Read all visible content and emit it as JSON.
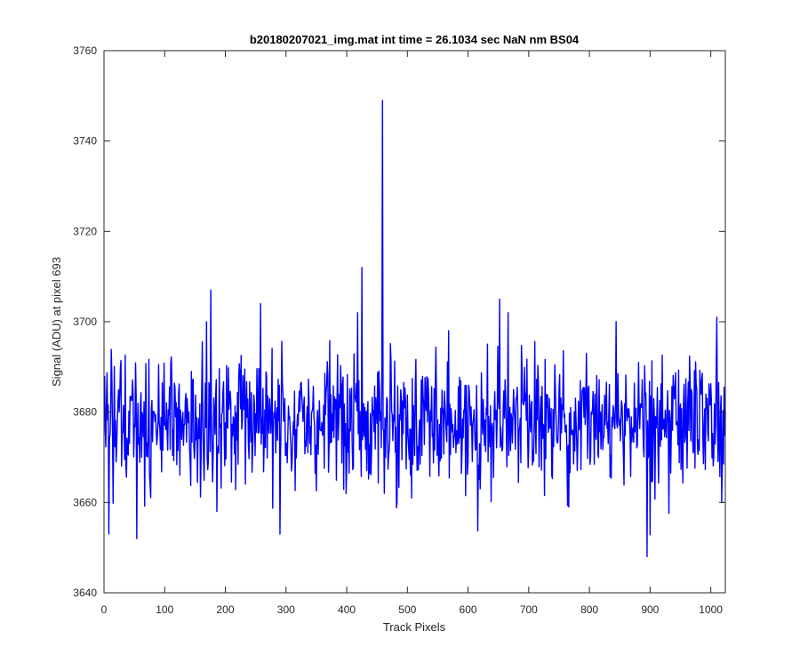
{
  "chart_data": {
    "type": "line",
    "title": "b20180207021_img.mat int time = 26.1034 sec  NaN nm BS04",
    "xlabel": "Track Pixels",
    "ylabel": "Signal (ADU) at pixel 693",
    "xlim": [
      0,
      1024
    ],
    "ylim": [
      3640,
      3760
    ],
    "xticks": [
      0,
      100,
      200,
      300,
      400,
      500,
      600,
      700,
      800,
      900,
      1000
    ],
    "yticks": [
      3640,
      3660,
      3680,
      3700,
      3720,
      3740,
      3760
    ],
    "grid": false,
    "legend": "none",
    "series": [
      {
        "color": "#0000ff",
        "noise_seed": 20180207,
        "baseline": 3678,
        "noise_amplitude": 7,
        "length": 1024,
        "key_points": [
          {
            "x": 1,
            "y": 3688
          },
          {
            "x": 8,
            "y": 3653
          },
          {
            "x": 54,
            "y": 3652
          },
          {
            "x": 176,
            "y": 3707
          },
          {
            "x": 186,
            "y": 3658
          },
          {
            "x": 258,
            "y": 3704
          },
          {
            "x": 290,
            "y": 3653
          },
          {
            "x": 418,
            "y": 3702
          },
          {
            "x": 425,
            "y": 3712
          },
          {
            "x": 459,
            "y": 3749
          },
          {
            "x": 462,
            "y": 3662
          },
          {
            "x": 652,
            "y": 3705
          },
          {
            "x": 666,
            "y": 3702
          },
          {
            "x": 766,
            "y": 3659
          },
          {
            "x": 895,
            "y": 3648
          },
          {
            "x": 1010,
            "y": 3701
          },
          {
            "x": 1018,
            "y": 3660
          },
          {
            "x": 1024,
            "y": 3680
          }
        ]
      }
    ]
  }
}
